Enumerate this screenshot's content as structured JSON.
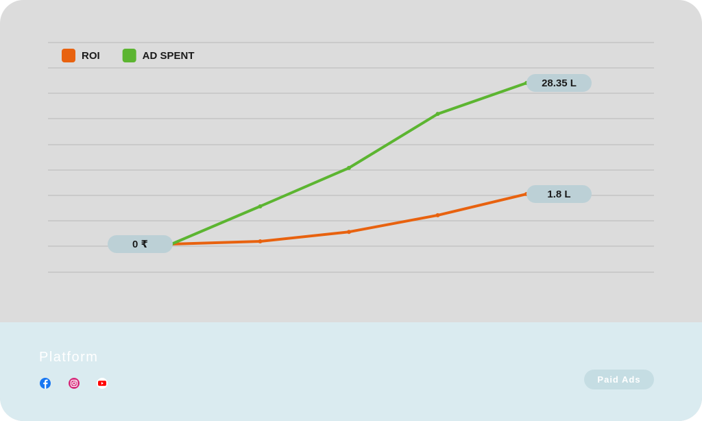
{
  "chart_data": {
    "type": "line",
    "categories": [
      null,
      null,
      null,
      null,
      null
    ],
    "series": [
      {
        "name": "ROI",
        "color": "#e8620f",
        "axis": "y2",
        "values": [
          0,
          0.1,
          0.44,
          1.04,
          1.8
        ],
        "value_labels": [
          null,
          null,
          null,
          null,
          "1.8 L"
        ]
      },
      {
        "name": "AD SPENT",
        "color": "#5cb531",
        "values": [
          0,
          6.64,
          13.4,
          22.9,
          28.35
        ],
        "value_labels": [
          "0 ₹",
          null,
          null,
          null,
          "28.35 L"
        ]
      }
    ],
    "ylim": [
      -4.95,
      35.47
    ],
    "y2lim": [
      -1.01,
      7.25
    ],
    "legend": "top-left"
  },
  "footer": {
    "title": "Platform",
    "button": "Paid Ads"
  }
}
